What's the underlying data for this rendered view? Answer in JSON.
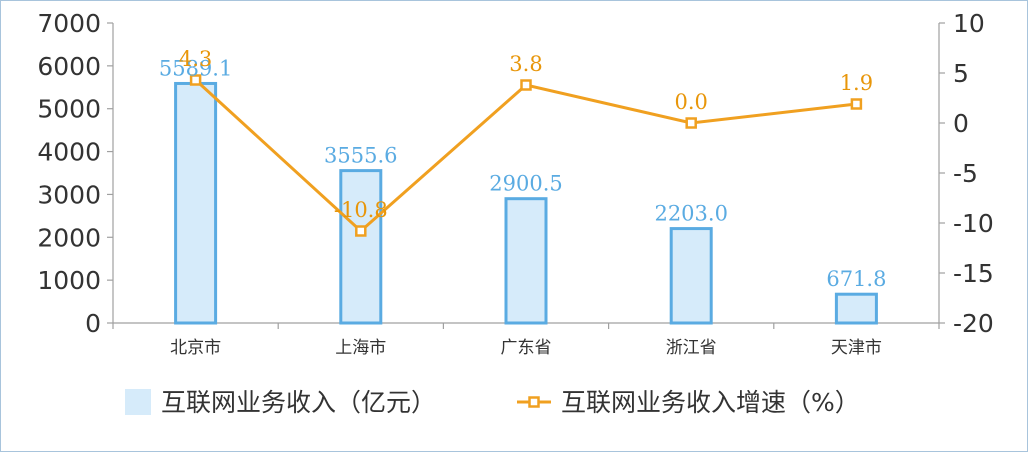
{
  "chart_data": {
    "type": "bar+line",
    "categories": [
      "北京市",
      "上海市",
      "广东省",
      "浙江省",
      "天津市"
    ],
    "series": [
      {
        "name": "互联网业务收入（亿元）",
        "type": "bar",
        "axis": "left",
        "values": [
          5589.1,
          3555.6,
          2900.5,
          2203.0,
          671.8
        ],
        "labels": [
          "5589.1",
          "3555.6",
          "2900.5",
          "2203.0",
          "671.8"
        ]
      },
      {
        "name": "互联网业务收入增速（%）",
        "type": "line",
        "axis": "right",
        "values": [
          4.3,
          -10.8,
          3.8,
          0.0,
          1.9
        ],
        "labels": [
          "4.3",
          "-10.8",
          "3.8",
          "0.0",
          "1.9"
        ]
      }
    ],
    "left_axis": {
      "ylim": [
        0,
        7000
      ],
      "ticks": [
        "0",
        "1000",
        "2000",
        "3000",
        "4000",
        "5000",
        "6000",
        "7000"
      ]
    },
    "right_axis": {
      "ylim": [
        -20,
        10
      ],
      "ticks": [
        "-20",
        "-15",
        "-10",
        "-5",
        "0",
        "5",
        "10"
      ]
    },
    "legend_position": "bottom",
    "grid": false,
    "colors": {
      "bar_fill": "#d6ebfa",
      "bar_stroke": "#5aabe2",
      "line": "#f0a020",
      "marker_fill": "#ffffff",
      "axis": "#a0a0a0"
    }
  }
}
